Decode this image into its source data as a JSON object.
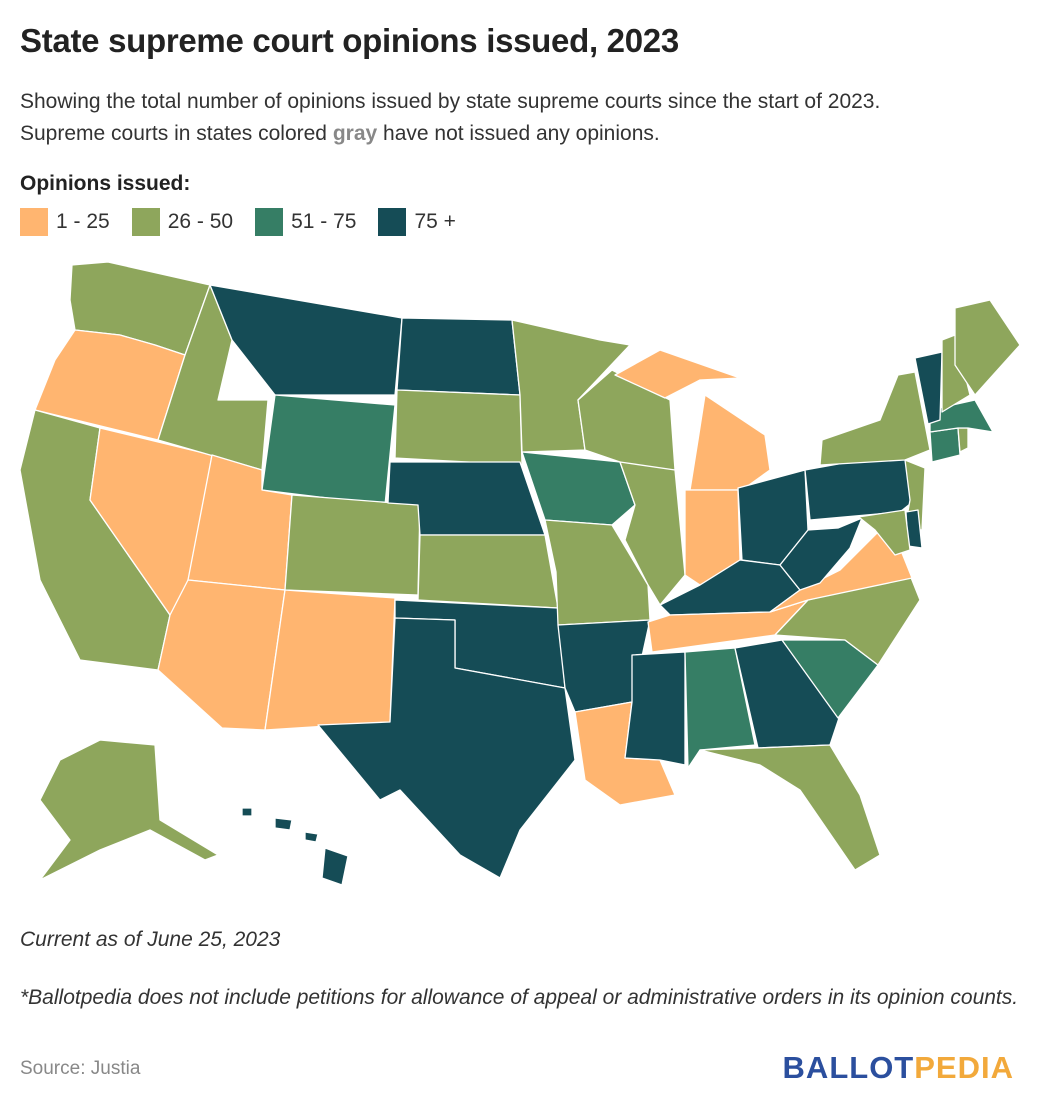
{
  "title": "State supreme court opinions issued, 2023",
  "subtitle": {
    "line1": "Showing the total number of opinions issued by state supreme courts since the start of 2023.",
    "line2_before": "Supreme courts in states colored ",
    "line2_gray": "gray",
    "line2_after": " have not issued any opinions."
  },
  "legend": {
    "title": "Opinions issued:",
    "bins": [
      {
        "label": "1 - 25",
        "color": "#ffb570"
      },
      {
        "label": "26 - 50",
        "color": "#8ea65c"
      },
      {
        "label": "51 - 75",
        "color": "#367e65"
      },
      {
        "label": "75 +",
        "color": "#154c56"
      }
    ]
  },
  "state_bins": {
    "WA": 1,
    "OR": 0,
    "CA": 1,
    "NV": 0,
    "ID": 1,
    "MT": 3,
    "WY": 2,
    "UT": 0,
    "AZ": 0,
    "CO": 1,
    "NM": 0,
    "ND": 3,
    "SD": 1,
    "NE": 3,
    "KS": 1,
    "OK": 3,
    "TX": 3,
    "MN": 1,
    "IA": 2,
    "MO": 1,
    "AR": 3,
    "LA": 0,
    "WI": 1,
    "IL": 1,
    "MI": 0,
    "IN": 0,
    "OH": 3,
    "KY": 3,
    "TN": 0,
    "MS": 3,
    "AL": 2,
    "GA": 3,
    "FL": 1,
    "SC": 2,
    "NC": 1,
    "VA": 0,
    "WV": 3,
    "PA": 3,
    "NY": 1,
    "NJ": 1,
    "DE": 3,
    "MD": 1,
    "CT": 2,
    "RI": 1,
    "MA": 2,
    "VT": 3,
    "NH": 1,
    "ME": 1,
    "AK": 1,
    "HI": 3
  },
  "as_of": "Current as of June 25, 2023",
  "footnote": "*Ballotpedia does not include petitions for allowance of appeal or administrative orders in its opinion counts.",
  "source": "Source: Justia",
  "logo": {
    "part1": "BALLOT",
    "part2": "PEDIA"
  }
}
